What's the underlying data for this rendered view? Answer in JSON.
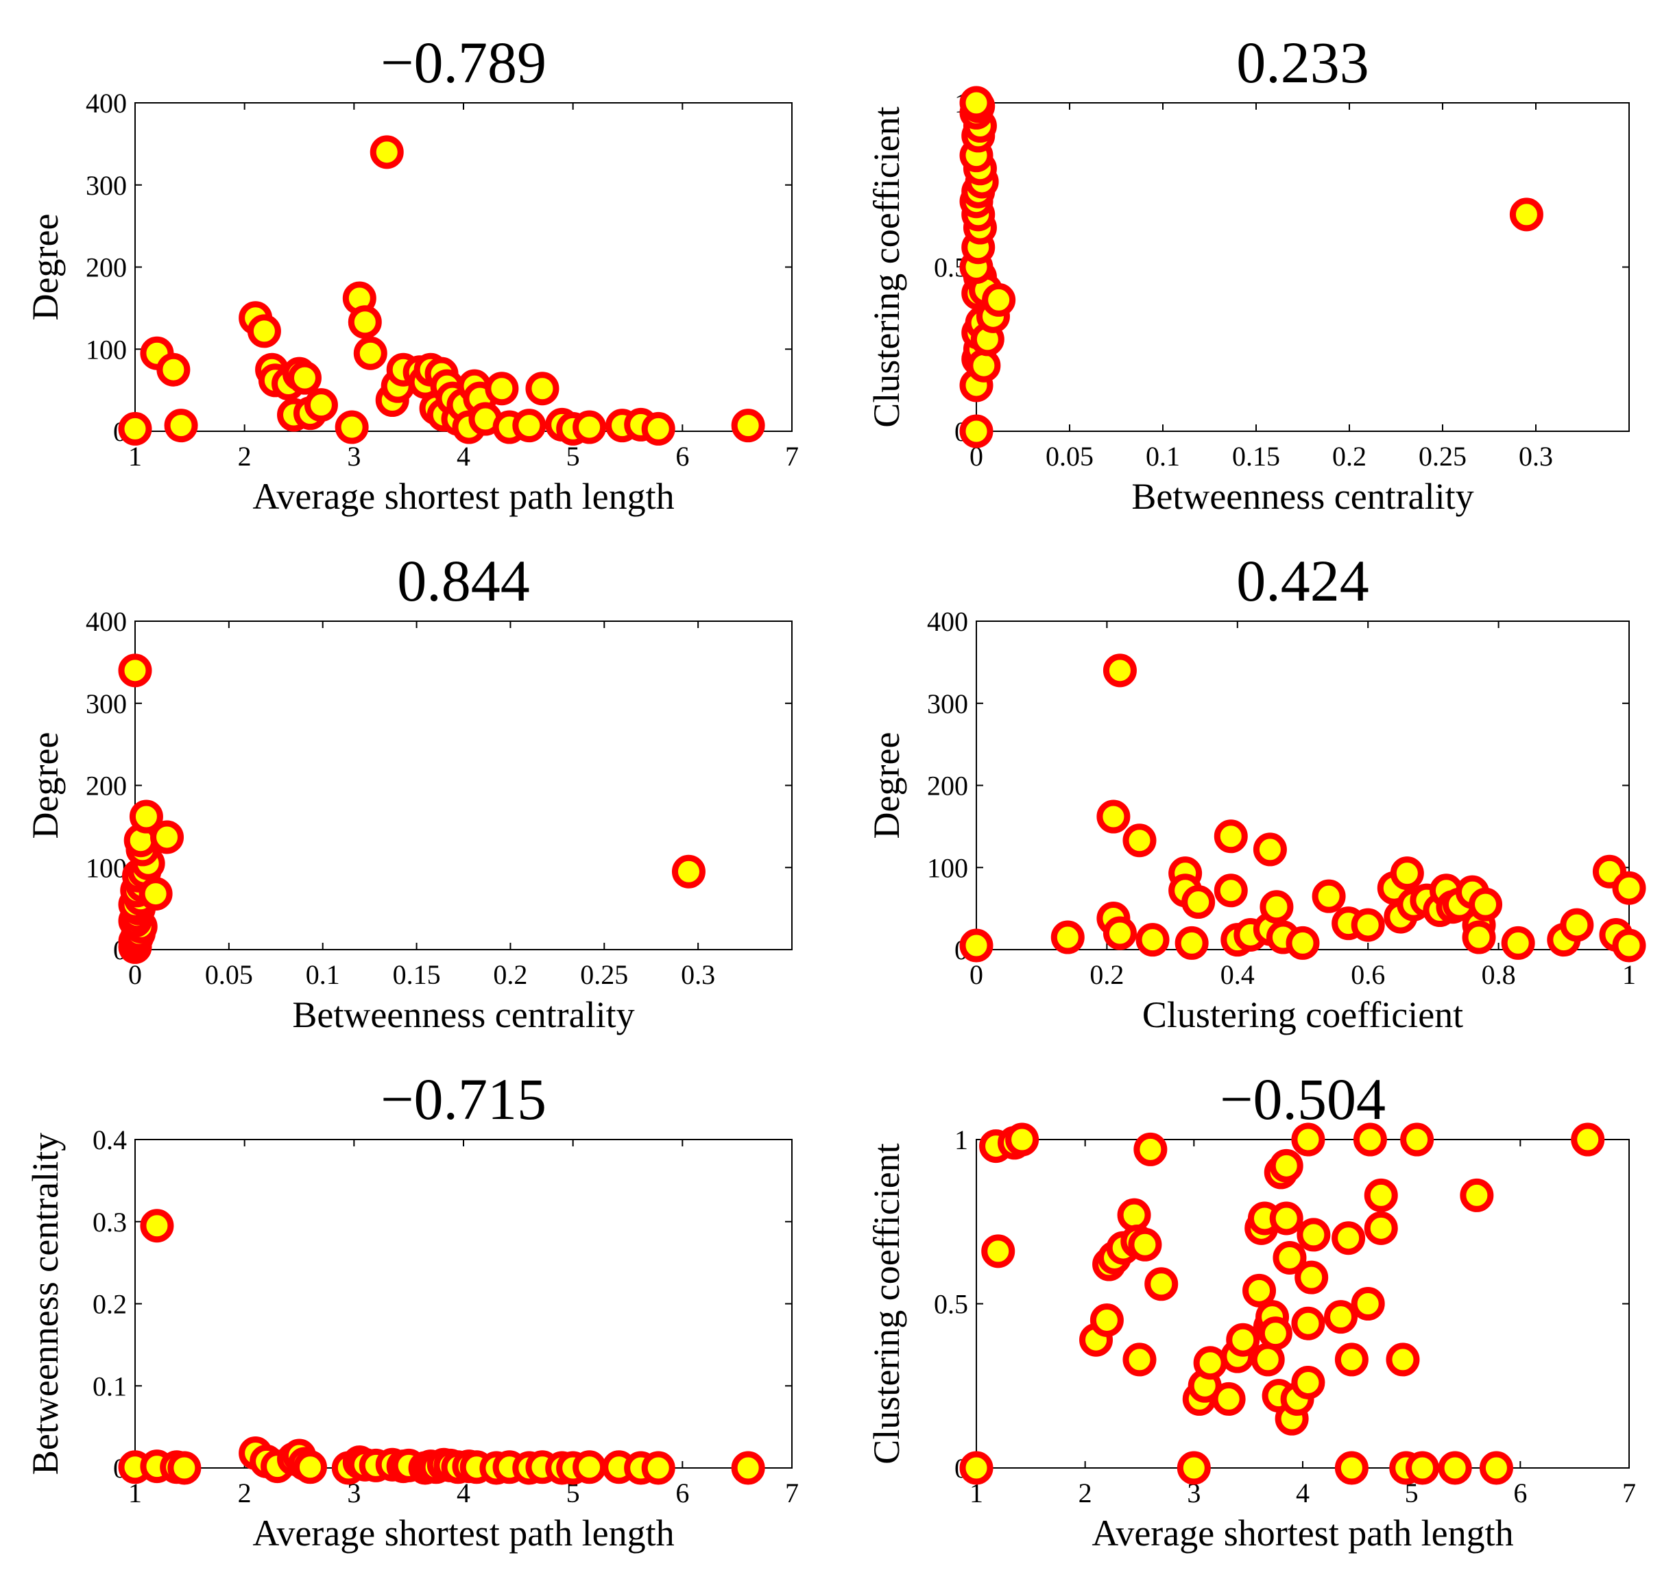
{
  "figure": {
    "marker_fill": "#ffff00",
    "marker_edge": "#ff0000"
  },
  "chart_data": [
    {
      "type": "scatter",
      "title": "−0.789",
      "xlabel": "Average shortest path length",
      "ylabel": "Degree",
      "xlim": [
        1,
        7
      ],
      "ylim": [
        0,
        400
      ],
      "xticks": [
        1,
        2,
        3,
        4,
        5,
        6,
        7
      ],
      "xtick_labels": [
        "1",
        "2",
        "3",
        "4",
        "5",
        "6",
        "7"
      ],
      "yticks": [
        0,
        100,
        200,
        300,
        400
      ],
      "ytick_labels": [
        "0",
        "100",
        "200",
        "300",
        "400"
      ],
      "points": [
        [
          1.0,
          3
        ],
        [
          1.2,
          95
        ],
        [
          1.35,
          75
        ],
        [
          1.42,
          7
        ],
        [
          2.1,
          138
        ],
        [
          2.18,
          122
        ],
        [
          2.25,
          75
        ],
        [
          2.28,
          62
        ],
        [
          2.4,
          58
        ],
        [
          2.45,
          20
        ],
        [
          2.5,
          70
        ],
        [
          2.55,
          65
        ],
        [
          2.6,
          22
        ],
        [
          2.7,
          32
        ],
        [
          2.98,
          5
        ],
        [
          3.05,
          162
        ],
        [
          3.1,
          133
        ],
        [
          3.15,
          95
        ],
        [
          3.3,
          340
        ],
        [
          3.35,
          38
        ],
        [
          3.4,
          55
        ],
        [
          3.45,
          75
        ],
        [
          3.6,
          72
        ],
        [
          3.65,
          60
        ],
        [
          3.7,
          75
        ],
        [
          3.75,
          28
        ],
        [
          3.8,
          70
        ],
        [
          3.82,
          20
        ],
        [
          3.85,
          55
        ],
        [
          3.9,
          40
        ],
        [
          3.95,
          15
        ],
        [
          4.0,
          32
        ],
        [
          4.05,
          5
        ],
        [
          4.1,
          55
        ],
        [
          4.15,
          40
        ],
        [
          4.2,
          15
        ],
        [
          4.35,
          52
        ],
        [
          4.42,
          5
        ],
        [
          4.6,
          7
        ],
        [
          4.72,
          52
        ],
        [
          4.9,
          8
        ],
        [
          5.0,
          3
        ],
        [
          5.15,
          5
        ],
        [
          5.45,
          7
        ],
        [
          5.62,
          8
        ],
        [
          5.78,
          3
        ],
        [
          6.6,
          7
        ]
      ]
    },
    {
      "type": "scatter",
      "title": "0.233",
      "xlabel": "Betweenness centrality",
      "ylabel": "Clustering coefficient",
      "xlim": [
        0,
        0.35
      ],
      "ylim": [
        0,
        1
      ],
      "xticks": [
        0,
        0.05,
        0.1,
        0.15,
        0.2,
        0.25,
        0.3
      ],
      "xtick_labels": [
        "0",
        "0.05",
        "0.1",
        "0.15",
        "0.2",
        "0.25",
        "0.3"
      ],
      "yticks": [
        0,
        0.5,
        1
      ],
      "ytick_labels": [
        "0",
        "0.5",
        "1"
      ],
      "points": [
        [
          0,
          0
        ],
        [
          0,
          0.14
        ],
        [
          0.001,
          0.22
        ],
        [
          0.002,
          0.25
        ],
        [
          0.004,
          0.2
        ],
        [
          0.001,
          0.3
        ],
        [
          0.003,
          0.33
        ],
        [
          0.006,
          0.28
        ],
        [
          0.009,
          0.35
        ],
        [
          0.001,
          0.42
        ],
        [
          0.002,
          0.47
        ],
        [
          0.005,
          0.43
        ],
        [
          0.012,
          0.4
        ],
        [
          0.0,
          0.5
        ],
        [
          0.001,
          0.56
        ],
        [
          0.002,
          0.62
        ],
        [
          0.001,
          0.66
        ],
        [
          0.0,
          0.7
        ],
        [
          0.001,
          0.73
        ],
        [
          0.003,
          0.76
        ],
        [
          0.002,
          0.8
        ],
        [
          0.0,
          0.84
        ],
        [
          0.001,
          0.9
        ],
        [
          0.002,
          0.93
        ],
        [
          0.0,
          0.97
        ],
        [
          0.001,
          0.99
        ],
        [
          0.0,
          1.0
        ],
        [
          0.295,
          0.66
        ]
      ]
    },
    {
      "type": "scatter",
      "title": "0.844",
      "xlabel": "Betweenness centrality",
      "ylabel": "Degree",
      "xlim": [
        0,
        0.35
      ],
      "ylim": [
        0,
        400
      ],
      "xticks": [
        0,
        0.05,
        0.1,
        0.15,
        0.2,
        0.25,
        0.3
      ],
      "xtick_labels": [
        "0",
        "0.05",
        "0.1",
        "0.15",
        "0.2",
        "0.25",
        "0.3"
      ],
      "yticks": [
        0,
        100,
        200,
        300,
        400
      ],
      "ytick_labels": [
        "0",
        "100",
        "200",
        "300",
        "400"
      ],
      "points": [
        [
          0.0,
          3
        ],
        [
          0.0,
          10
        ],
        [
          0.001,
          15
        ],
        [
          0.002,
          20
        ],
        [
          0.003,
          28
        ],
        [
          0.0,
          35
        ],
        [
          0.001,
          42
        ],
        [
          0.002,
          50
        ],
        [
          0.0,
          55
        ],
        [
          0.003,
          62
        ],
        [
          0.001,
          72
        ],
        [
          0.004,
          78
        ],
        [
          0.002,
          90
        ],
        [
          0.005,
          95
        ],
        [
          0.007,
          105
        ],
        [
          0.004,
          122
        ],
        [
          0.003,
          133
        ],
        [
          0.006,
          162
        ],
        [
          0.017,
          137
        ],
        [
          0.011,
          68
        ],
        [
          0.0,
          340
        ],
        [
          0.295,
          95
        ]
      ]
    },
    {
      "type": "scatter",
      "title": "0.424",
      "xlabel": "Clustering coefficient",
      "ylabel": "Degree",
      "xlim": [
        0,
        1
      ],
      "ylim": [
        0,
        400
      ],
      "xticks": [
        0,
        0.2,
        0.4,
        0.6,
        0.8,
        1
      ],
      "xtick_labels": [
        "0",
        "0.2",
        "0.4",
        "0.6",
        "0.8",
        "1"
      ],
      "yticks": [
        0,
        100,
        200,
        300,
        400
      ],
      "ytick_labels": [
        "0",
        "100",
        "200",
        "300",
        "400"
      ],
      "points": [
        [
          0,
          5
        ],
        [
          0.14,
          15
        ],
        [
          0.21,
          162
        ],
        [
          0.21,
          38
        ],
        [
          0.22,
          340
        ],
        [
          0.22,
          20
        ],
        [
          0.25,
          133
        ],
        [
          0.27,
          12
        ],
        [
          0.32,
          93
        ],
        [
          0.32,
          72
        ],
        [
          0.33,
          8
        ],
        [
          0.34,
          58
        ],
        [
          0.39,
          138
        ],
        [
          0.39,
          72
        ],
        [
          0.4,
          12
        ],
        [
          0.42,
          18
        ],
        [
          0.45,
          25
        ],
        [
          0.45,
          122
        ],
        [
          0.46,
          52
        ],
        [
          0.47,
          15
        ],
        [
          0.5,
          8
        ],
        [
          0.54,
          65
        ],
        [
          0.57,
          32
        ],
        [
          0.6,
          30
        ],
        [
          0.64,
          75
        ],
        [
          0.65,
          40
        ],
        [
          0.66,
          93
        ],
        [
          0.67,
          55
        ],
        [
          0.69,
          60
        ],
        [
          0.71,
          48
        ],
        [
          0.72,
          72
        ],
        [
          0.73,
          52
        ],
        [
          0.74,
          55
        ],
        [
          0.76,
          70
        ],
        [
          0.77,
          30
        ],
        [
          0.78,
          55
        ],
        [
          0.77,
          15
        ],
        [
          0.83,
          8
        ],
        [
          0.9,
          12
        ],
        [
          0.92,
          30
        ],
        [
          0.97,
          95
        ],
        [
          0.98,
          18
        ],
        [
          1.0,
          75
        ],
        [
          1.0,
          5
        ]
      ]
    },
    {
      "type": "scatter",
      "title": "−0.715",
      "xlabel": "Average shortest path length",
      "ylabel": "Betweenness centrality",
      "xlim": [
        1,
        7
      ],
      "ylim": [
        0,
        0.4
      ],
      "xticks": [
        1,
        2,
        3,
        4,
        5,
        6,
        7
      ],
      "xtick_labels": [
        "1",
        "2",
        "3",
        "4",
        "5",
        "6",
        "7"
      ],
      "yticks": [
        0,
        0.1,
        0.2,
        0.3,
        0.4
      ],
      "ytick_labels": [
        "0",
        "0.1",
        "0.2",
        "0.3",
        "0.4"
      ],
      "points": [
        [
          1.0,
          0.001
        ],
        [
          1.2,
          0.002
        ],
        [
          1.2,
          0.295
        ],
        [
          1.38,
          0.001
        ],
        [
          1.45,
          0.0
        ],
        [
          2.1,
          0.018
        ],
        [
          2.2,
          0.008
        ],
        [
          2.3,
          0.002
        ],
        [
          2.45,
          0.011
        ],
        [
          2.5,
          0.015
        ],
        [
          2.55,
          0.005
        ],
        [
          2.6,
          0.001
        ],
        [
          2.95,
          0.0
        ],
        [
          3.05,
          0.007
        ],
        [
          3.1,
          0.004
        ],
        [
          3.2,
          0.003
        ],
        [
          3.35,
          0.004
        ],
        [
          3.45,
          0.002
        ],
        [
          3.5,
          0.003
        ],
        [
          3.65,
          0.0
        ],
        [
          3.7,
          0.002
        ],
        [
          3.75,
          0.001
        ],
        [
          3.82,
          0.004
        ],
        [
          3.88,
          0.003
        ],
        [
          3.95,
          0.001
        ],
        [
          4.05,
          0.002
        ],
        [
          4.12,
          0.001
        ],
        [
          4.3,
          0.0
        ],
        [
          4.42,
          0.001
        ],
        [
          4.6,
          0.0
        ],
        [
          4.72,
          0.001
        ],
        [
          4.9,
          0.0
        ],
        [
          5.0,
          0.0
        ],
        [
          5.15,
          0.001
        ],
        [
          5.42,
          0.001
        ],
        [
          5.62,
          0.0
        ],
        [
          5.78,
          0.0
        ],
        [
          6.6,
          0.0
        ]
      ]
    },
    {
      "type": "scatter",
      "title": "−0.504",
      "xlabel": "Average shortest path length",
      "ylabel": "Clustering coefficient",
      "xlim": [
        1,
        7
      ],
      "ylim": [
        0,
        1
      ],
      "xticks": [
        1,
        2,
        3,
        4,
        5,
        6,
        7
      ],
      "xtick_labels": [
        "1",
        "2",
        "3",
        "4",
        "5",
        "6",
        "7"
      ],
      "yticks": [
        0,
        0.5,
        1
      ],
      "ytick_labels": [
        "0",
        "0.5",
        "1"
      ],
      "points": [
        [
          1.0,
          0
        ],
        [
          1.18,
          0.98
        ],
        [
          1.2,
          0.66
        ],
        [
          1.35,
          0.99
        ],
        [
          1.42,
          1.0
        ],
        [
          2.1,
          0.39
        ],
        [
          2.2,
          0.45
        ],
        [
          2.22,
          0.62
        ],
        [
          2.27,
          0.64
        ],
        [
          2.35,
          0.67
        ],
        [
          2.45,
          0.77
        ],
        [
          2.48,
          0.69
        ],
        [
          2.5,
          0.33
        ],
        [
          2.55,
          0.68
        ],
        [
          2.6,
          0.97
        ],
        [
          2.7,
          0.56
        ],
        [
          3.0,
          0
        ],
        [
          3.05,
          0.21
        ],
        [
          3.1,
          0.25
        ],
        [
          3.15,
          0.32
        ],
        [
          3.32,
          0.21
        ],
        [
          3.4,
          0.34
        ],
        [
          3.45,
          0.39
        ],
        [
          3.6,
          0.54
        ],
        [
          3.62,
          0.73
        ],
        [
          3.65,
          0.76
        ],
        [
          3.68,
          0.33
        ],
        [
          3.7,
          0.43
        ],
        [
          3.72,
          0.46
        ],
        [
          3.75,
          0.41
        ],
        [
          3.78,
          0.22
        ],
        [
          3.8,
          0.9
        ],
        [
          3.85,
          0.92
        ],
        [
          3.85,
          0.76
        ],
        [
          3.88,
          0.64
        ],
        [
          3.9,
          0.15
        ],
        [
          3.95,
          0.21
        ],
        [
          4.05,
          0.26
        ],
        [
          4.05,
          1.0
        ],
        [
          4.05,
          0.44
        ],
        [
          4.08,
          0.58
        ],
        [
          4.1,
          0.71
        ],
        [
          4.35,
          0.46
        ],
        [
          4.42,
          0.7
        ],
        [
          4.45,
          0.33
        ],
        [
          4.45,
          0
        ],
        [
          4.6,
          0.5
        ],
        [
          4.62,
          1.0
        ],
        [
          4.72,
          0.83
        ],
        [
          4.72,
          0.73
        ],
        [
          4.92,
          0.33
        ],
        [
          4.95,
          0
        ],
        [
          5.05,
          1.0
        ],
        [
          5.1,
          0
        ],
        [
          5.4,
          0
        ],
        [
          5.6,
          0.83
        ],
        [
          5.78,
          0
        ],
        [
          6.62,
          1.0
        ]
      ]
    }
  ]
}
